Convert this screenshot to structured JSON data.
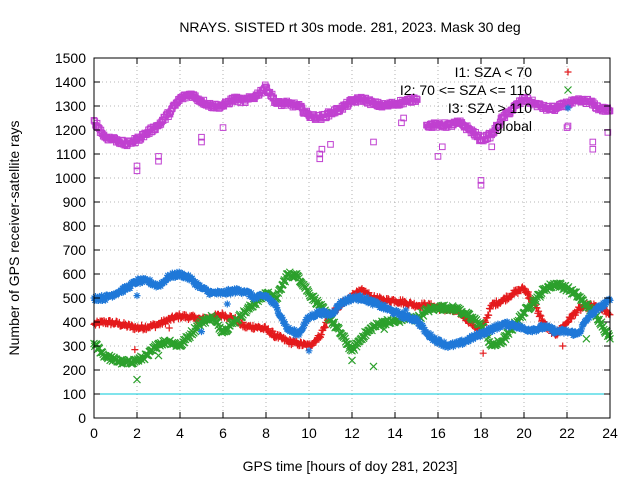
{
  "chart_data": {
    "type": "scatter",
    "title": "NRAYS. SISTED rt 30s mode. 281, 2023. Mask 30 deg",
    "xlabel": "GPS time [hours of doy 281, 2023]",
    "ylabel": "Number of GPS receiver-satellite rays",
    "xlim": [
      0,
      24
    ],
    "ylim": [
      0,
      1500
    ],
    "xticks": [
      "0",
      "2",
      "4",
      "6",
      "8",
      "10",
      "12",
      "14",
      "16",
      "18",
      "20",
      "22",
      "24"
    ],
    "yticks": [
      "0",
      "100",
      "200",
      "300",
      "400",
      "500",
      "600",
      "700",
      "800",
      "900",
      "1000",
      "1100",
      "1200",
      "1300",
      "1400",
      "1500"
    ],
    "grid": true,
    "legend_position": "top-right",
    "threshold_line": {
      "y": 100,
      "color": "#00c8d8"
    },
    "series": [
      {
        "name": "I1: SZA < 70",
        "marker": "plus",
        "color": "#e41a1c",
        "points": [
          [
            0.0,
            390
          ],
          [
            0.5,
            400
          ],
          [
            1.0,
            395
          ],
          [
            1.5,
            385
          ],
          [
            2.0,
            375
          ],
          [
            2.5,
            380
          ],
          [
            3.0,
            390
          ],
          [
            3.5,
            410
          ],
          [
            4.0,
            425
          ],
          [
            4.5,
            420
          ],
          [
            5.0,
            410
          ],
          [
            5.5,
            420
          ],
          [
            6.0,
            430
          ],
          [
            6.5,
            415
          ],
          [
            7.0,
            380
          ],
          [
            7.5,
            380
          ],
          [
            8.0,
            370
          ],
          [
            8.5,
            340
          ],
          [
            9.0,
            320
          ],
          [
            9.5,
            310
          ],
          [
            10.0,
            300
          ],
          [
            10.5,
            340
          ],
          [
            11.0,
            430
          ],
          [
            11.5,
            470
          ],
          [
            12.0,
            510
          ],
          [
            12.5,
            530
          ],
          [
            13.0,
            500
          ],
          [
            13.5,
            490
          ],
          [
            14.0,
            490
          ],
          [
            14.5,
            480
          ],
          [
            15.0,
            470
          ],
          [
            15.5,
            470
          ],
          [
            16.0,
            460
          ],
          [
            16.5,
            450
          ],
          [
            17.0,
            440
          ],
          [
            17.5,
            400
          ],
          [
            18.0,
            360
          ],
          [
            18.5,
            470
          ],
          [
            19.0,
            490
          ],
          [
            19.5,
            520
          ],
          [
            20.0,
            540
          ],
          [
            20.5,
            470
          ],
          [
            21.0,
            380
          ],
          [
            21.5,
            350
          ],
          [
            22.0,
            400
          ],
          [
            22.5,
            450
          ],
          [
            23.0,
            470
          ],
          [
            23.5,
            460
          ],
          [
            24.0,
            430
          ]
        ]
      },
      {
        "name": "I2: 70 <= SZA <= 110",
        "marker": "cross",
        "color": "#2ca02c",
        "points": [
          [
            0.0,
            310
          ],
          [
            0.5,
            260
          ],
          [
            1.0,
            240
          ],
          [
            1.5,
            230
          ],
          [
            2.0,
            240
          ],
          [
            2.5,
            260
          ],
          [
            3.0,
            310
          ],
          [
            3.5,
            320
          ],
          [
            4.0,
            300
          ],
          [
            4.5,
            350
          ],
          [
            5.0,
            400
          ],
          [
            5.5,
            420
          ],
          [
            6.0,
            360
          ],
          [
            6.5,
            400
          ],
          [
            7.0,
            440
          ],
          [
            7.5,
            480
          ],
          [
            8.0,
            520
          ],
          [
            8.5,
            500
          ],
          [
            9.0,
            600
          ],
          [
            9.5,
            590
          ],
          [
            10.0,
            520
          ],
          [
            10.5,
            470
          ],
          [
            11.0,
            410
          ],
          [
            11.5,
            350
          ],
          [
            12.0,
            280
          ],
          [
            12.5,
            340
          ],
          [
            13.0,
            380
          ],
          [
            13.5,
            400
          ],
          [
            14.0,
            400
          ],
          [
            14.5,
            420
          ],
          [
            15.0,
            410
          ],
          [
            15.5,
            450
          ],
          [
            16.0,
            460
          ],
          [
            16.5,
            460
          ],
          [
            17.0,
            450
          ],
          [
            17.5,
            420
          ],
          [
            18.0,
            390
          ],
          [
            18.5,
            300
          ],
          [
            19.0,
            320
          ],
          [
            19.5,
            380
          ],
          [
            20.0,
            440
          ],
          [
            20.5,
            490
          ],
          [
            21.0,
            540
          ],
          [
            21.5,
            560
          ],
          [
            22.0,
            540
          ],
          [
            22.5,
            510
          ],
          [
            23.0,
            460
          ],
          [
            23.5,
            410
          ],
          [
            24.0,
            330
          ]
        ]
      },
      {
        "name": "I3: SZA > 110",
        "marker": "star",
        "color": "#1f78d8",
        "points": [
          [
            0.0,
            500
          ],
          [
            0.5,
            500
          ],
          [
            1.0,
            520
          ],
          [
            1.5,
            540
          ],
          [
            2.0,
            570
          ],
          [
            2.5,
            570
          ],
          [
            3.0,
            550
          ],
          [
            3.5,
            590
          ],
          [
            4.0,
            600
          ],
          [
            4.5,
            580
          ],
          [
            5.0,
            540
          ],
          [
            5.5,
            520
          ],
          [
            6.0,
            520
          ],
          [
            6.5,
            530
          ],
          [
            7.0,
            530
          ],
          [
            7.5,
            500
          ],
          [
            8.0,
            510
          ],
          [
            8.5,
            460
          ],
          [
            9.0,
            370
          ],
          [
            9.5,
            350
          ],
          [
            10.0,
            420
          ],
          [
            10.5,
            440
          ],
          [
            11.0,
            430
          ],
          [
            11.5,
            480
          ],
          [
            12.0,
            500
          ],
          [
            12.5,
            500
          ],
          [
            13.0,
            480
          ],
          [
            13.5,
            460
          ],
          [
            14.0,
            440
          ],
          [
            14.5,
            420
          ],
          [
            15.0,
            410
          ],
          [
            15.5,
            350
          ],
          [
            16.0,
            320
          ],
          [
            16.5,
            300
          ],
          [
            17.0,
            310
          ],
          [
            17.5,
            330
          ],
          [
            18.0,
            350
          ],
          [
            18.5,
            370
          ],
          [
            19.0,
            390
          ],
          [
            19.5,
            390
          ],
          [
            20.0,
            370
          ],
          [
            20.5,
            370
          ],
          [
            21.0,
            380
          ],
          [
            21.5,
            360
          ],
          [
            22.0,
            360
          ],
          [
            22.5,
            350
          ],
          [
            23.0,
            420
          ],
          [
            23.5,
            460
          ],
          [
            24.0,
            490
          ]
        ]
      },
      {
        "name": "global",
        "marker": "square",
        "color": "#c040d0",
        "points": [
          [
            0.0,
            1240
          ],
          [
            0.5,
            1170
          ],
          [
            1.0,
            1160
          ],
          [
            1.5,
            1140
          ],
          [
            2.0,
            1160
          ],
          [
            2.5,
            1190
          ],
          [
            3.0,
            1220
          ],
          [
            3.5,
            1270
          ],
          [
            4.0,
            1330
          ],
          [
            4.5,
            1350
          ],
          [
            5.0,
            1320
          ],
          [
            5.5,
            1300
          ],
          [
            6.0,
            1300
          ],
          [
            6.5,
            1330
          ],
          [
            7.0,
            1320
          ],
          [
            7.5,
            1340
          ],
          [
            8.0,
            1380
          ],
          [
            8.5,
            1310
          ],
          [
            9.0,
            1310
          ],
          [
            9.5,
            1300
          ],
          [
            10.0,
            1260
          ],
          [
            10.5,
            1250
          ],
          [
            11.0,
            1270
          ],
          [
            11.5,
            1290
          ],
          [
            12.0,
            1320
          ],
          [
            12.5,
            1330
          ],
          [
            13.0,
            1310
          ],
          [
            13.5,
            1300
          ],
          [
            14.0,
            1310
          ],
          [
            14.5,
            1320
          ],
          [
            15.0,
            1330
          ],
          [
            15.5,
            1220
          ],
          [
            16.0,
            1220
          ],
          [
            16.5,
            1220
          ],
          [
            17.0,
            1230
          ],
          [
            17.5,
            1200
          ],
          [
            18.0,
            1160
          ],
          [
            18.5,
            1180
          ],
          [
            19.0,
            1250
          ],
          [
            19.5,
            1290
          ],
          [
            20.0,
            1330
          ],
          [
            20.5,
            1310
          ],
          [
            21.0,
            1290
          ],
          [
            21.5,
            1290
          ],
          [
            22.0,
            1310
          ],
          [
            22.5,
            1320
          ],
          [
            23.0,
            1320
          ],
          [
            23.5,
            1290
          ],
          [
            24.0,
            1280
          ]
        ]
      }
    ],
    "outliers": {
      "I1: SZA < 70": [
        [
          1.9,
          285
        ],
        [
          3.5,
          375
        ],
        [
          8.4,
          335
        ],
        [
          13.5,
          490
        ],
        [
          18.1,
          270
        ],
        [
          20.2,
          525
        ],
        [
          21.8,
          300
        ]
      ],
      "I2: 70 <= SZA <= 110": [
        [
          2.0,
          160
        ],
        [
          3.0,
          260
        ],
        [
          8.1,
          510
        ],
        [
          12.0,
          240
        ],
        [
          13.0,
          215
        ],
        [
          13.5,
          370
        ],
        [
          22.9,
          330
        ]
      ],
      "I3: SZA > 110": [
        [
          2.0,
          510
        ],
        [
          5.0,
          360
        ],
        [
          6.2,
          475
        ],
        [
          10.0,
          280
        ],
        [
          14.5,
          450
        ]
      ],
      "global": [
        [
          2.0,
          1030
        ],
        [
          2.0,
          1050
        ],
        [
          3.0,
          1070
        ],
        [
          3.0,
          1090
        ],
        [
          5.0,
          1150
        ],
        [
          5.0,
          1170
        ],
        [
          6.0,
          1210
        ],
        [
          10.5,
          1080
        ],
        [
          10.5,
          1100
        ],
        [
          10.6,
          1120
        ],
        [
          11.0,
          1140
        ],
        [
          13.0,
          1150
        ],
        [
          14.3,
          1230
        ],
        [
          14.4,
          1250
        ],
        [
          16.0,
          1090
        ],
        [
          16.2,
          1130
        ],
        [
          18.0,
          970
        ],
        [
          18.0,
          990
        ],
        [
          18.5,
          1130
        ],
        [
          22.0,
          1210
        ],
        [
          23.2,
          1120
        ],
        [
          23.2,
          1150
        ],
        [
          23.9,
          1190
        ]
      ]
    }
  }
}
